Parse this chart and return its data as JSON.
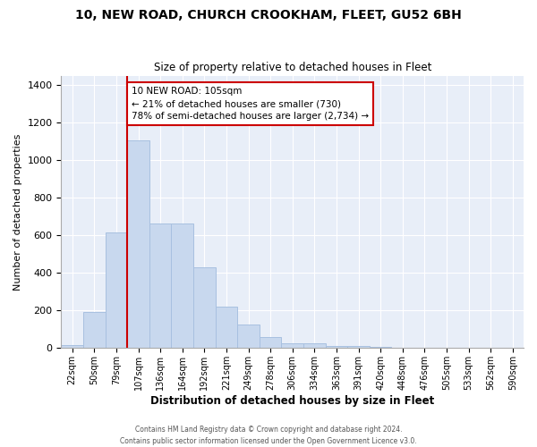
{
  "title": "10, NEW ROAD, CHURCH CROOKHAM, FLEET, GU52 6BH",
  "subtitle": "Size of property relative to detached houses in Fleet",
  "xlabel": "Distribution of detached houses by size in Fleet",
  "ylabel": "Number of detached properties",
  "bar_color": "#c8d8ee",
  "bar_edge_color": "#a8c0e0",
  "bin_labels": [
    "22sqm",
    "50sqm",
    "79sqm",
    "107sqm",
    "136sqm",
    "164sqm",
    "192sqm",
    "221sqm",
    "249sqm",
    "278sqm",
    "306sqm",
    "334sqm",
    "363sqm",
    "391sqm",
    "420sqm",
    "448sqm",
    "476sqm",
    "505sqm",
    "533sqm",
    "562sqm",
    "590sqm"
  ],
  "bar_values": [
    15,
    193,
    615,
    1105,
    665,
    665,
    430,
    220,
    125,
    60,
    25,
    25,
    10,
    10,
    8,
    0,
    0,
    0,
    0,
    0,
    0
  ],
  "ylim": [
    0,
    1450
  ],
  "yticks": [
    0,
    200,
    400,
    600,
    800,
    1000,
    1200,
    1400
  ],
  "annotation_title": "10 NEW ROAD: 105sqm",
  "annotation_line1": "← 21% of detached houses are smaller (730)",
  "annotation_line2": "78% of semi-detached houses are larger (2,734) →",
  "annotation_box_color": "#ffffff",
  "annotation_box_edge_color": "#cc0000",
  "vline_color": "#cc0000",
  "footer_line1": "Contains HM Land Registry data © Crown copyright and database right 2024.",
  "footer_line2": "Contains public sector information licensed under the Open Government Licence v3.0.",
  "plot_bg_color": "#e8eef8",
  "grid_color": "#ffffff"
}
